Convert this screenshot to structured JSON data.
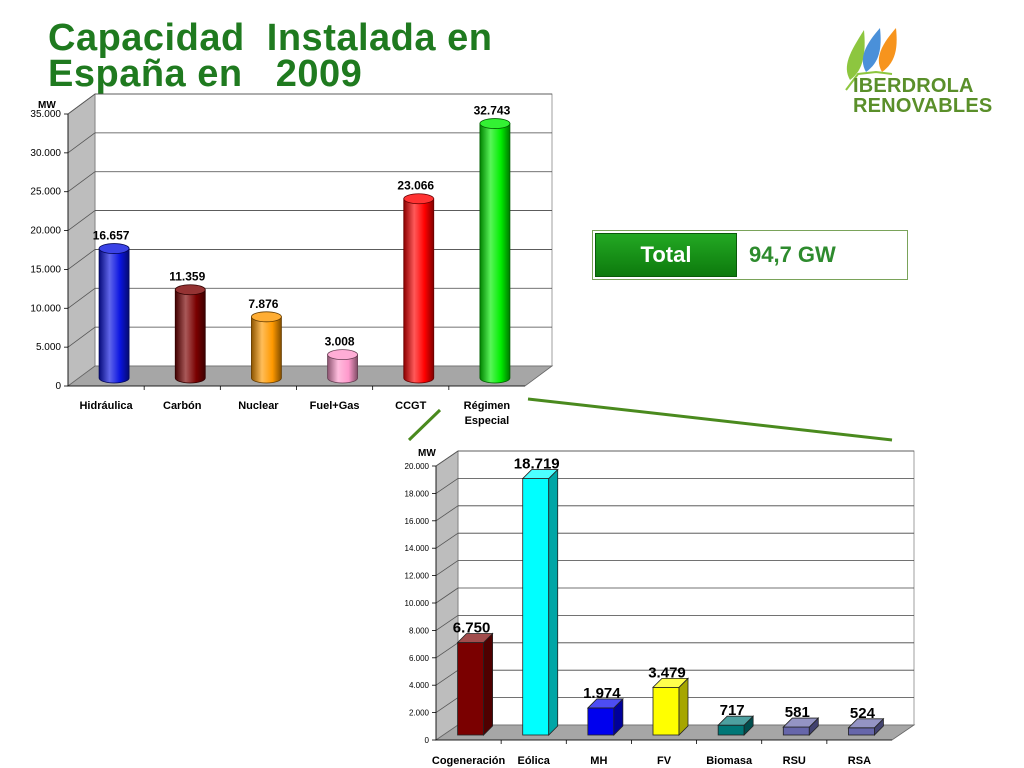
{
  "title": {
    "line1": "Capacidad  Instalada en",
    "line2": "España en   2009"
  },
  "logo": {
    "line1": "IBERDROLA",
    "line2": "RENOVABLES",
    "icon": "leaf-drops-icon",
    "colors": [
      "#8dc63f",
      "#f7941d",
      "#4a90d9"
    ]
  },
  "total": {
    "label": "Total",
    "value": "94,7 GW"
  },
  "chart_data": [
    {
      "type": "bar",
      "ylabel": "MW",
      "ylim": [
        0,
        35000
      ],
      "yticks": [
        0,
        5000,
        10000,
        15000,
        20000,
        25000,
        30000,
        35000
      ],
      "ytick_labels": [
        "0",
        "5.000",
        "10.000",
        "15.000",
        "20.000",
        "25.000",
        "30.000",
        "35.000"
      ],
      "grid": true,
      "categories": [
        "Hidráulica",
        "Carbón",
        "Nuclear",
        "Fuel+Gas",
        "CCGT",
        "Régimen\nEspecial"
      ],
      "values": [
        16657,
        11359,
        7876,
        3008,
        23066,
        32743
      ],
      "value_labels": [
        "16.657",
        "11.359",
        "7.876",
        "3.008",
        "23.066",
        "32.743"
      ],
      "colors": [
        "#0a14e0",
        "#7a0000",
        "#ff9900",
        "#ff99cc",
        "#ff0000",
        "#00ee00"
      ]
    },
    {
      "type": "bar",
      "ylabel": "MW",
      "ylim": [
        0,
        20000
      ],
      "yticks": [
        0,
        2000,
        4000,
        6000,
        8000,
        10000,
        12000,
        14000,
        16000,
        18000,
        20000
      ],
      "ytick_labels": [
        "0",
        "2.000",
        "4.000",
        "6.000",
        "8.000",
        "10.000",
        "12.000",
        "14.000",
        "16.000",
        "18.000",
        "20.000"
      ],
      "grid": true,
      "categories": [
        "Cogeneración",
        "Eólica",
        "MH",
        "FV",
        "Biomasa",
        "RSU",
        "RSA"
      ],
      "values": [
        6750,
        18719,
        1974,
        3479,
        717,
        581,
        524
      ],
      "value_labels": [
        "6.750",
        "18.719",
        "1.974",
        "3.479",
        "717",
        "581",
        "524"
      ],
      "colors": [
        "#7a0000",
        "#00ffff",
        "#0000ee",
        "#ffff00",
        "#007777",
        "#6666aa",
        "#6666aa"
      ]
    }
  ]
}
